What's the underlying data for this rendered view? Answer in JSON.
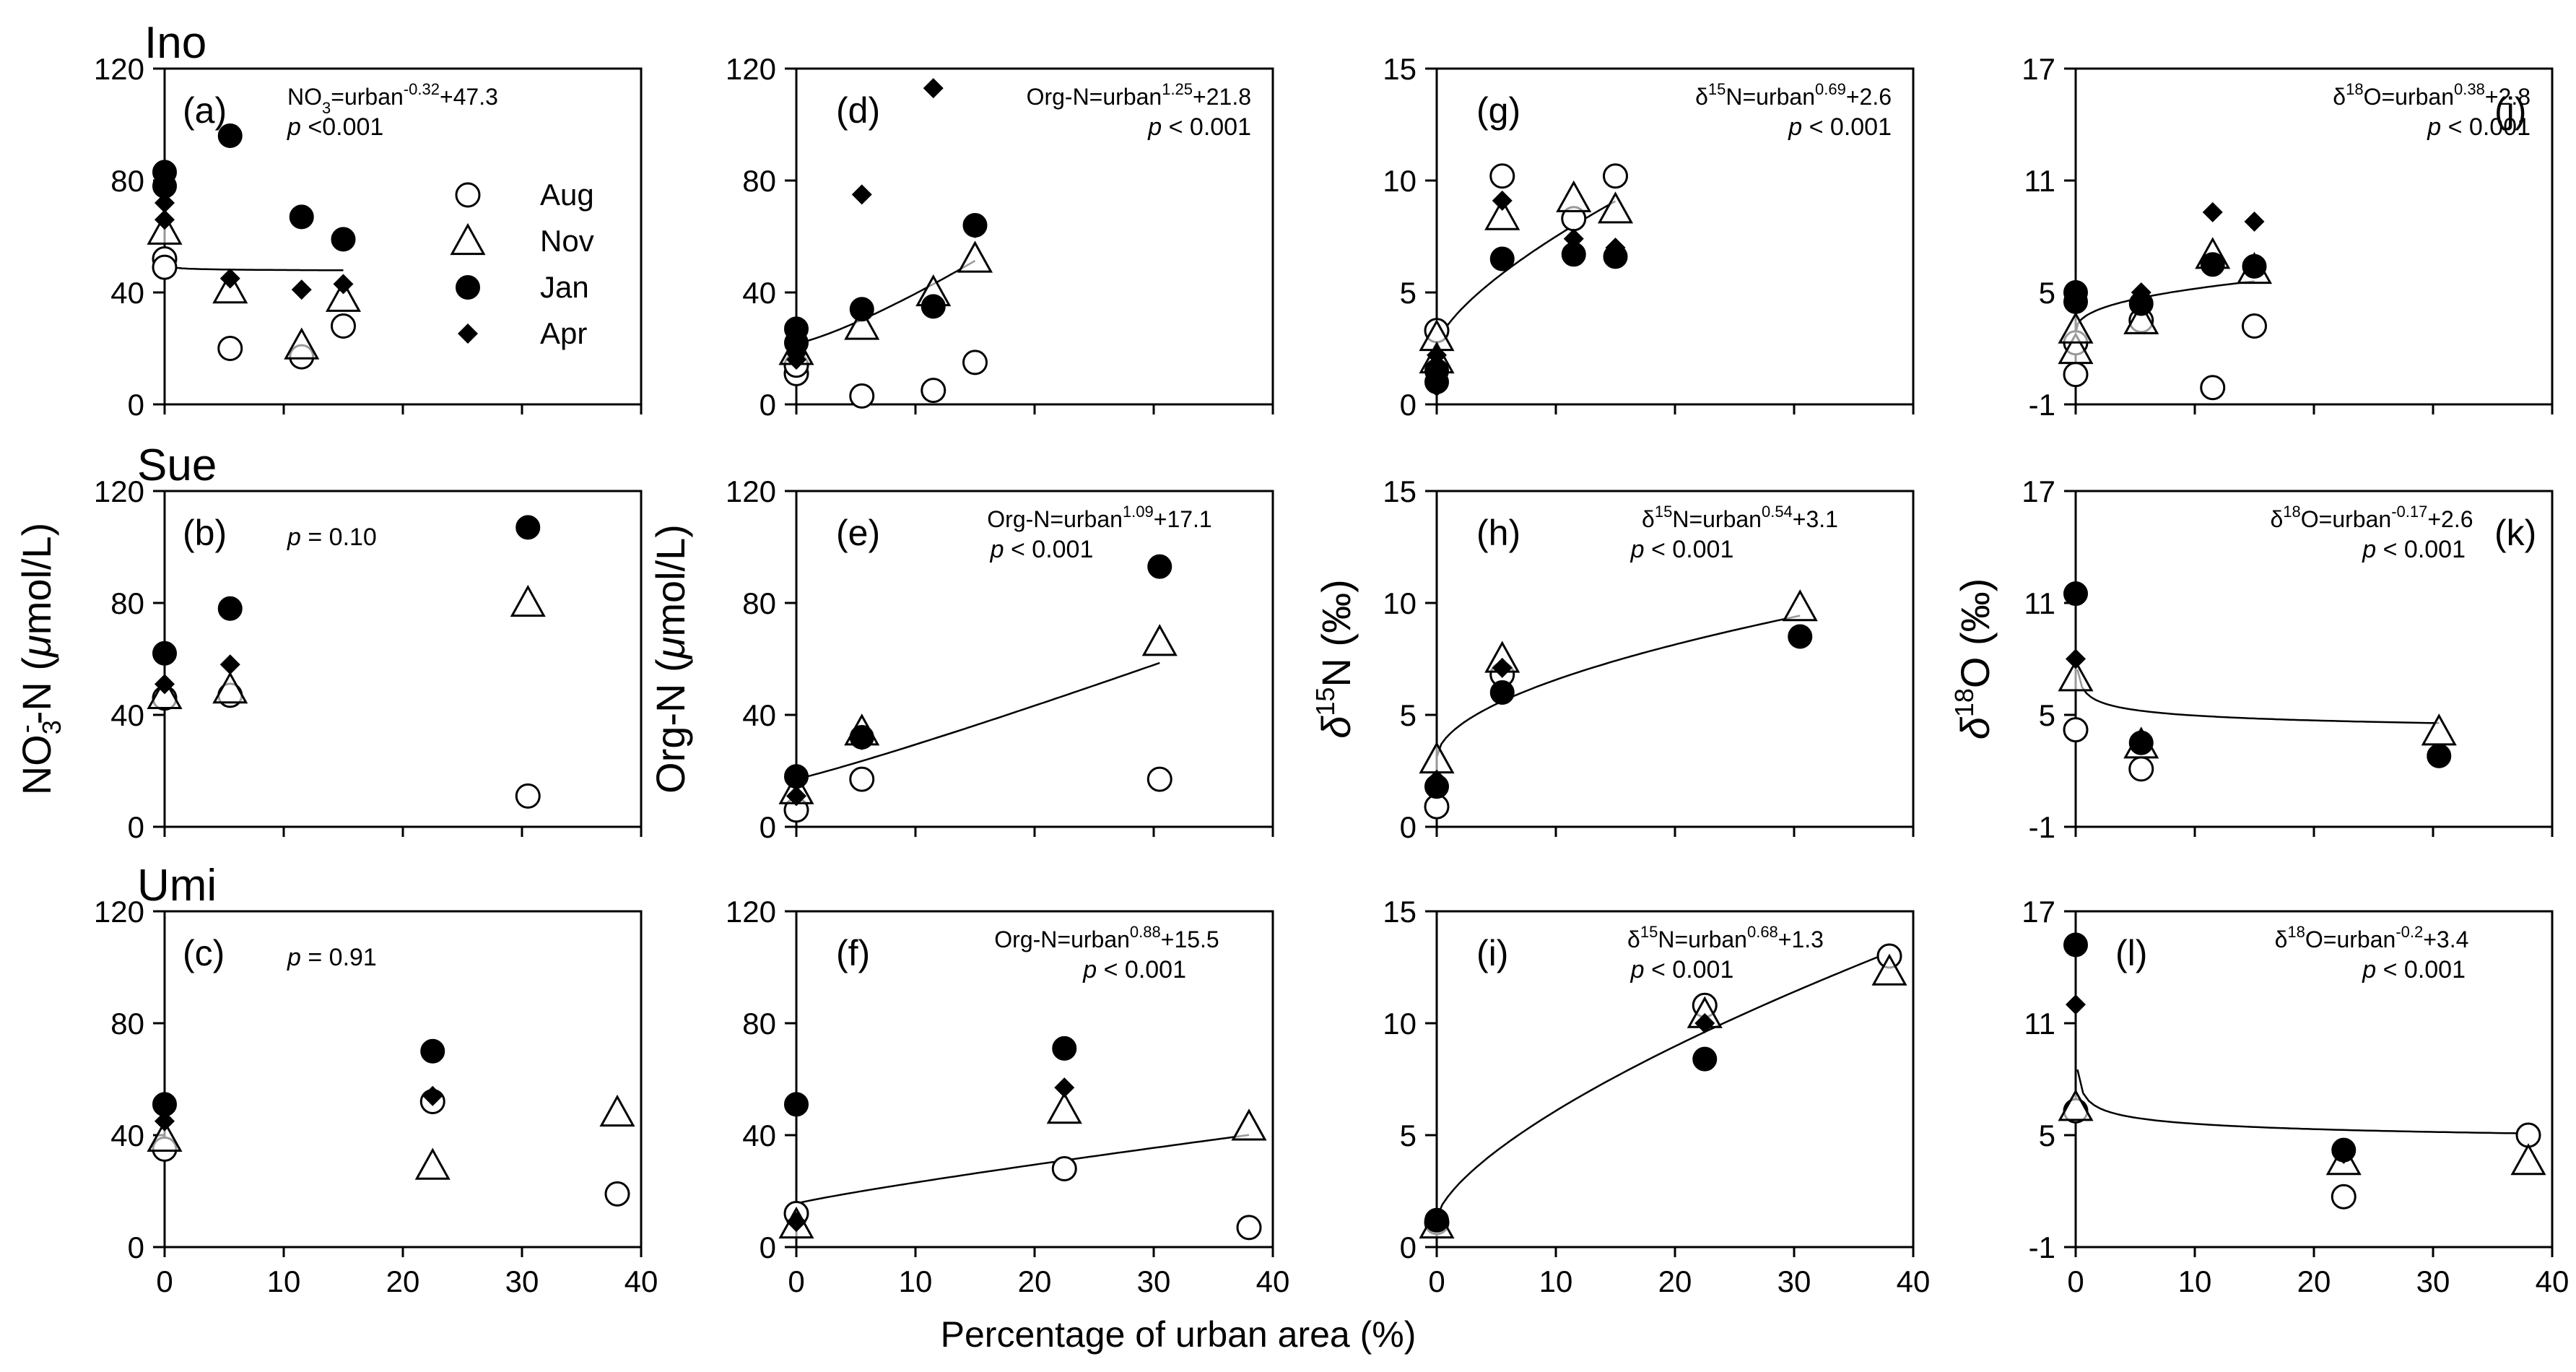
{
  "site_labels": [
    "Ino",
    "Sue",
    "Umi"
  ],
  "x_axis_label": "Percentage of urban area (%)",
  "y_axis_labels": {
    "nitrate": {
      "pre": "NO",
      "sub": "3",
      "sup": "-",
      "post": "-N (",
      "mu": "μ",
      "post2": "mol/L)"
    },
    "orgn": {
      "pre": "Org-N (",
      "mu": "μ",
      "post": "mol/L)"
    },
    "d15n": {
      "delta": "δ",
      "sup": "15",
      "post": "N (‰)"
    },
    "d18o": {
      "delta": "δ",
      "sup": "18",
      "post": "O (‰)"
    }
  },
  "legend": [
    {
      "name": "Aug",
      "marker": "open-circle"
    },
    {
      "name": "Nov",
      "marker": "open-triangle"
    },
    {
      "name": "Jan",
      "marker": "filled-circle"
    },
    {
      "name": "Apr",
      "marker": "filled-diamond"
    }
  ],
  "chart_data": [
    {
      "id": "a",
      "label": "(a)",
      "type": "scatter",
      "xlim": [
        0,
        40
      ],
      "ylim": [
        0,
        120
      ],
      "yticks": [
        0,
        40,
        80,
        120
      ],
      "xticks": [],
      "show_xticklabels": false,
      "equation": {
        "pre": "NO",
        "sub": "3",
        "mid": "=urban",
        "sup": "-0.32",
        "post": "+47.3"
      },
      "pvalue": "p <0.001",
      "fit": {
        "a": 0,
        "b": -0.32,
        "c": 47.3,
        "xmax": 15
      },
      "series": [
        {
          "name": "Aug",
          "x": [
            0,
            0,
            5.5,
            11.5,
            15
          ],
          "y": [
            52,
            49,
            20,
            17,
            28
          ]
        },
        {
          "name": "Nov",
          "x": [
            0,
            5.5,
            11.5,
            15
          ],
          "y": [
            62,
            41,
            21,
            38
          ]
        },
        {
          "name": "Jan",
          "x": [
            0,
            0,
            5.5,
            11.5,
            15
          ],
          "y": [
            83,
            78,
            96,
            67,
            59
          ]
        },
        {
          "name": "Apr",
          "x": [
            0,
            0,
            5.5,
            11.5,
            15
          ],
          "y": [
            72,
            66,
            45,
            41,
            43
          ]
        }
      ]
    },
    {
      "id": "d",
      "label": "(d)",
      "type": "scatter",
      "xlim": [
        0,
        40
      ],
      "ylim": [
        0,
        120
      ],
      "yticks": [
        0,
        40,
        80,
        120
      ],
      "xticks": [],
      "show_xticklabels": false,
      "equation": {
        "pre": "Org-N=urban",
        "sup": "1.25",
        "post": "+21.8"
      },
      "pvalue": "p < 0.001",
      "fit": {
        "a": 1,
        "b": 1.25,
        "c": 21.8,
        "xmax": 15
      },
      "series": [
        {
          "name": "Aug",
          "x": [
            0,
            0,
            5.5,
            11.5,
            15
          ],
          "y": [
            11,
            14,
            3,
            5,
            15
          ]
        },
        {
          "name": "Nov",
          "x": [
            0,
            5.5,
            11.5,
            15
          ],
          "y": [
            19,
            28,
            40,
            52
          ]
        },
        {
          "name": "Jan",
          "x": [
            0,
            0,
            5.5,
            11.5,
            15
          ],
          "y": [
            27,
            22,
            34,
            35,
            64
          ]
        },
        {
          "name": "Apr",
          "x": [
            0,
            0,
            5.5,
            11.5,
            15
          ],
          "y": [
            18,
            16,
            75,
            113,
            63
          ]
        }
      ]
    },
    {
      "id": "g",
      "label": "(g)",
      "type": "scatter",
      "xlim": [
        0,
        40
      ],
      "ylim": [
        0,
        15
      ],
      "yticks": [
        0,
        5,
        10,
        15
      ],
      "xticks": [],
      "show_xticklabels": false,
      "equation": {
        "pre": "δ",
        "pre_sup": "15",
        "mid": "N=urban",
        "sup": "0.69",
        "post": "+2.6"
      },
      "pvalue": "p < 0.001",
      "fit": {
        "a": 1,
        "b": 0.69,
        "c": 2.6,
        "xmax": 15
      },
      "series": [
        {
          "name": "Aug",
          "x": [
            0,
            5.5,
            11.5,
            15
          ],
          "y": [
            3.3,
            10.2,
            8.3,
            10.2
          ]
        },
        {
          "name": "Nov",
          "x": [
            0,
            0,
            5.5,
            11.5,
            15
          ],
          "y": [
            3.0,
            2.0,
            8.4,
            9.2,
            8.7
          ]
        },
        {
          "name": "Jan",
          "x": [
            0,
            0,
            5.5,
            11.5,
            15
          ],
          "y": [
            1.0,
            1.5,
            6.5,
            6.7,
            6.6
          ]
        },
        {
          "name": "Apr",
          "x": [
            0,
            0,
            0,
            5.5,
            11.5,
            15
          ],
          "y": [
            0.8,
            1.7,
            2.2,
            9.1,
            7.4,
            7.0
          ]
        }
      ]
    },
    {
      "id": "j",
      "label": "(j)",
      "type": "scatter",
      "xlim": [
        0,
        40
      ],
      "ylim": [
        -1,
        17
      ],
      "yticks": [
        -1,
        5,
        11,
        17
      ],
      "xticks": [],
      "show_xticklabels": false,
      "equation": {
        "pre": "δ",
        "pre_sup": "18",
        "mid": "O=urban",
        "sup": "0.38",
        "post": "+2.8"
      },
      "pvalue": "p < 0.001",
      "fit": {
        "a": 1,
        "b": 0.38,
        "c": 2.8,
        "xmax": 15
      },
      "series": [
        {
          "name": "Aug",
          "x": [
            0,
            0,
            5.5,
            11.5,
            15
          ],
          "y": [
            0.6,
            2.3,
            3.5,
            -0.1,
            3.2
          ]
        },
        {
          "name": "Nov",
          "x": [
            0,
            0,
            5.5,
            11.5,
            15
          ],
          "y": [
            1.9,
            3.0,
            3.5,
            7.0,
            6.2
          ]
        },
        {
          "name": "Jan",
          "x": [
            0,
            0,
            5.5,
            11.5,
            15
          ],
          "y": [
            4.5,
            5.0,
            4.4,
            6.5,
            6.4
          ]
        },
        {
          "name": "Apr",
          "x": [
            0,
            5.5,
            11.5,
            15
          ],
          "y": [
            5.0,
            5.0,
            9.3,
            8.8
          ]
        }
      ]
    },
    {
      "id": "b",
      "label": "(b)",
      "type": "scatter",
      "xlim": [
        0,
        40
      ],
      "ylim": [
        0,
        120
      ],
      "yticks": [
        0,
        40,
        80,
        120
      ],
      "xticks": [],
      "show_xticklabels": false,
      "pvalue": "p = 0.10",
      "fit": null,
      "series": [
        {
          "name": "Aug",
          "x": [
            0,
            5.5,
            30.5
          ],
          "y": [
            46,
            47,
            11
          ]
        },
        {
          "name": "Nov",
          "x": [
            0,
            5.5,
            30.5
          ],
          "y": [
            47,
            49,
            80
          ]
        },
        {
          "name": "Jan",
          "x": [
            0,
            5.5,
            30.5
          ],
          "y": [
            62,
            78,
            107
          ]
        },
        {
          "name": "Apr",
          "x": [
            0,
            5.5
          ],
          "y": [
            51,
            58
          ]
        }
      ]
    },
    {
      "id": "e",
      "label": "(e)",
      "type": "scatter",
      "xlim": [
        0,
        40
      ],
      "ylim": [
        0,
        120
      ],
      "yticks": [
        0,
        40,
        80,
        120
      ],
      "xticks": [],
      "show_xticklabels": false,
      "equation": {
        "pre": "Org-N=urban",
        "sup": "1.09",
        "post": "+17.1"
      },
      "pvalue": "p < 0.001",
      "fit": {
        "a": 1,
        "b": 1.09,
        "c": 17.1,
        "xmax": 30.5
      },
      "series": [
        {
          "name": "Aug",
          "x": [
            0,
            5.5,
            30.5
          ],
          "y": [
            6,
            17,
            17
          ]
        },
        {
          "name": "Nov",
          "x": [
            0,
            5.5,
            30.5
          ],
          "y": [
            13,
            34,
            66
          ]
        },
        {
          "name": "Jan",
          "x": [
            0,
            5.5,
            30.5
          ],
          "y": [
            18,
            32,
            93
          ]
        },
        {
          "name": "Apr",
          "x": [
            0,
            5.5
          ],
          "y": [
            11,
            31
          ]
        }
      ]
    },
    {
      "id": "h",
      "label": "(h)",
      "type": "scatter",
      "xlim": [
        0,
        40
      ],
      "ylim": [
        0,
        15
      ],
      "yticks": [
        0,
        5,
        10,
        15
      ],
      "xticks": [],
      "show_xticklabels": false,
      "equation": {
        "pre": "δ",
        "pre_sup": "15",
        "mid": "N=urban",
        "sup": "0.54",
        "post": "+3.1"
      },
      "pvalue": "p < 0.001",
      "fit": {
        "a": 1,
        "b": 0.54,
        "c": 3.1,
        "xmax": 30.5
      },
      "series": [
        {
          "name": "Aug",
          "x": [
            0,
            5.5
          ],
          "y": [
            0.9,
            6.8
          ]
        },
        {
          "name": "Nov",
          "x": [
            0,
            5.5,
            30.5
          ],
          "y": [
            3.0,
            7.5,
            9.8
          ]
        },
        {
          "name": "Jan",
          "x": [
            0,
            5.5,
            30.5
          ],
          "y": [
            1.8,
            6.0,
            8.5
          ]
        },
        {
          "name": "Apr",
          "x": [
            0,
            5.5
          ],
          "y": [
            2.1,
            7.1
          ]
        }
      ]
    },
    {
      "id": "k",
      "label": "(k)",
      "type": "scatter",
      "xlim": [
        0,
        40
      ],
      "ylim": [
        -1,
        17
      ],
      "yticks": [
        -1,
        5,
        11,
        17
      ],
      "xticks": [],
      "show_xticklabels": false,
      "equation": {
        "pre": "δ",
        "pre_sup": "18",
        "mid": "O=urban",
        "sup": "-0.17",
        "post": "+2.6"
      },
      "pvalue": "p < 0.001",
      "fit": {
        "a": 1,
        "b": -0.17,
        "c": 2.6,
        "xmax": 30.5
      },
      "series": [
        {
          "name": "Aug",
          "x": [
            0,
            5.5
          ],
          "y": [
            4.2,
            2.1
          ]
        },
        {
          "name": "Nov",
          "x": [
            0,
            5.5,
            30.5
          ],
          "y": [
            7.0,
            3.4,
            4.1
          ]
        },
        {
          "name": "Jan",
          "x": [
            0,
            5.5,
            30.5
          ],
          "y": [
            11.5,
            3.5,
            2.8
          ]
        },
        {
          "name": "Apr",
          "x": [
            0,
            5.5
          ],
          "y": [
            8.0,
            3.7
          ]
        }
      ]
    },
    {
      "id": "c",
      "label": "(c)",
      "type": "scatter",
      "xlim": [
        0,
        40
      ],
      "ylim": [
        0,
        120
      ],
      "yticks": [
        0,
        40,
        80,
        120
      ],
      "xticks": [
        0,
        10,
        20,
        30,
        40
      ],
      "show_xticklabels": true,
      "pvalue": "p = 0.91",
      "fit": null,
      "series": [
        {
          "name": "Aug",
          "x": [
            0,
            22.5,
            38
          ],
          "y": [
            35,
            52,
            19
          ]
        },
        {
          "name": "Nov",
          "x": [
            0,
            22.5,
            38
          ],
          "y": [
            39,
            29,
            48
          ]
        },
        {
          "name": "Jan",
          "x": [
            0,
            22.5
          ],
          "y": [
            51,
            70
          ]
        },
        {
          "name": "Apr",
          "x": [
            0,
            22.5
          ],
          "y": [
            45,
            54
          ]
        }
      ]
    },
    {
      "id": "f",
      "label": "(f)",
      "type": "scatter",
      "xlim": [
        0,
        40
      ],
      "ylim": [
        0,
        120
      ],
      "yticks": [
        0,
        40,
        80,
        120
      ],
      "xticks": [
        0,
        10,
        20,
        30,
        40
      ],
      "show_xticklabels": true,
      "equation": {
        "pre": "Org-N=urban",
        "sup": "0.88",
        "post": "+15.5"
      },
      "pvalue": "p < 0.001",
      "fit": {
        "a": 1,
        "b": 0.88,
        "c": 15.5,
        "xmax": 38
      },
      "series": [
        {
          "name": "Aug",
          "x": [
            0,
            22.5,
            38
          ],
          "y": [
            12,
            28,
            7
          ]
        },
        {
          "name": "Nov",
          "x": [
            0,
            22.5,
            38
          ],
          "y": [
            8,
            49,
            43
          ]
        },
        {
          "name": "Jan",
          "x": [
            0,
            22.5
          ],
          "y": [
            51,
            71
          ]
        },
        {
          "name": "Apr",
          "x": [
            0,
            22.5
          ],
          "y": [
            9,
            57
          ]
        }
      ]
    },
    {
      "id": "i",
      "label": "(i)",
      "type": "scatter",
      "xlim": [
        0,
        40
      ],
      "ylim": [
        0,
        15
      ],
      "yticks": [
        0,
        5,
        10,
        15
      ],
      "xticks": [
        0,
        10,
        20,
        30,
        40
      ],
      "show_xticklabels": true,
      "equation": {
        "pre": "δ",
        "pre_sup": "15",
        "mid": "N=urban",
        "sup": "0.68",
        "post": "+1.3"
      },
      "pvalue": "p < 0.001",
      "fit": {
        "a": 1,
        "b": 0.68,
        "c": 1.3,
        "xmax": 38
      },
      "series": [
        {
          "name": "Aug",
          "x": [
            0,
            22.5,
            38
          ],
          "y": [
            1.1,
            10.8,
            13.0
          ]
        },
        {
          "name": "Nov",
          "x": [
            0,
            22.5,
            38
          ],
          "y": [
            1.0,
            10.4,
            12.3
          ]
        },
        {
          "name": "Jan",
          "x": [
            0,
            22.5
          ],
          "y": [
            1.2,
            8.4
          ]
        },
        {
          "name": "Apr",
          "x": [
            0,
            22.5
          ],
          "y": [
            1.3,
            10.0
          ]
        }
      ]
    },
    {
      "id": "l",
      "label": "(l)",
      "type": "scatter",
      "xlim": [
        0,
        40
      ],
      "ylim": [
        -1,
        17
      ],
      "yticks": [
        -1,
        5,
        11,
        17
      ],
      "xticks": [
        0,
        10,
        20,
        30,
        40
      ],
      "show_xticklabels": true,
      "equation": {
        "pre": "δ",
        "pre_sup": "18",
        "mid": "O=urban",
        "sup": "-0.2",
        "post": "+3.4"
      },
      "pvalue": "p < 0.001",
      "fit": {
        "a": 1,
        "b": -0.2,
        "c": 3.4,
        "xmax": 38
      },
      "series": [
        {
          "name": "Aug",
          "x": [
            0,
            22.5,
            38
          ],
          "y": [
            6.3,
            1.7,
            5.0
          ]
        },
        {
          "name": "Nov",
          "x": [
            0,
            22.5,
            38
          ],
          "y": [
            6.5,
            3.6,
            3.6
          ]
        },
        {
          "name": "Jan",
          "x": [
            0,
            22.5
          ],
          "y": [
            15.2,
            4.2
          ]
        },
        {
          "name": "Apr",
          "x": [
            0,
            22.5
          ],
          "y": [
            12.0,
            4.0
          ]
        }
      ]
    }
  ]
}
